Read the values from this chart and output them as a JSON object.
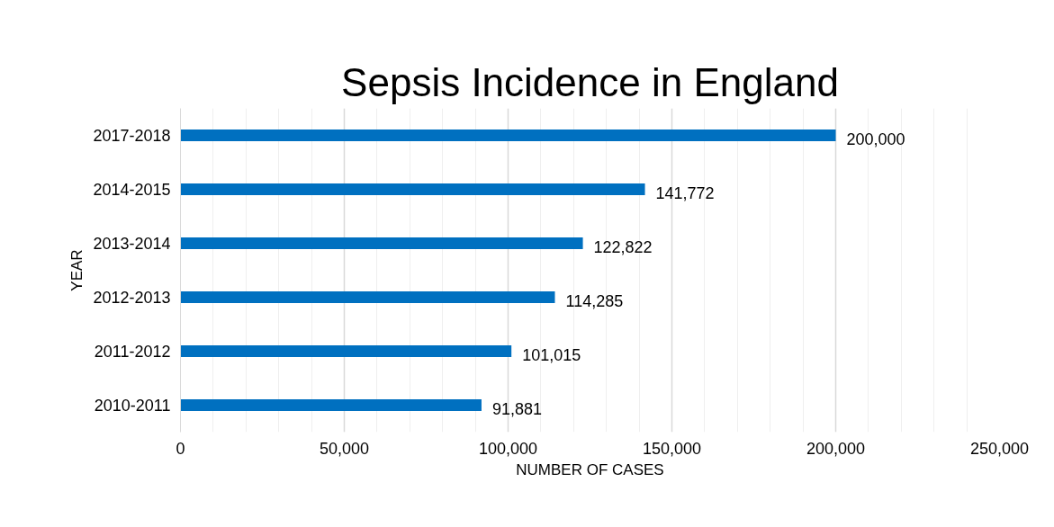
{
  "chart_data": {
    "type": "bar",
    "orientation": "horizontal",
    "title": "Sepsis Incidence in England",
    "xlabel": "NUMBER OF CASES",
    "ylabel": "YEAR",
    "categories": [
      "2017-2018",
      "2014-2015",
      "2013-2014",
      "2012-2013",
      "2011-2012",
      "2010-2011"
    ],
    "values": [
      200000,
      141772,
      122822,
      114285,
      101015,
      91881
    ],
    "color": "#0070c0",
    "xlim": [
      0,
      250000
    ],
    "xticks": [
      {
        "value": 0,
        "label": "0"
      },
      {
        "value": 50000,
        "label": "50,000"
      },
      {
        "value": 100000,
        "label": "100,000"
      },
      {
        "value": 150000,
        "label": "150,000"
      },
      {
        "value": 200000,
        "label": "200,000"
      },
      {
        "value": 250000,
        "label": "250,000"
      }
    ],
    "value_labels": [
      "200,000",
      "141,772",
      "122,822",
      "114,285",
      "101,015",
      "91,881"
    ],
    "grid": "x"
  }
}
